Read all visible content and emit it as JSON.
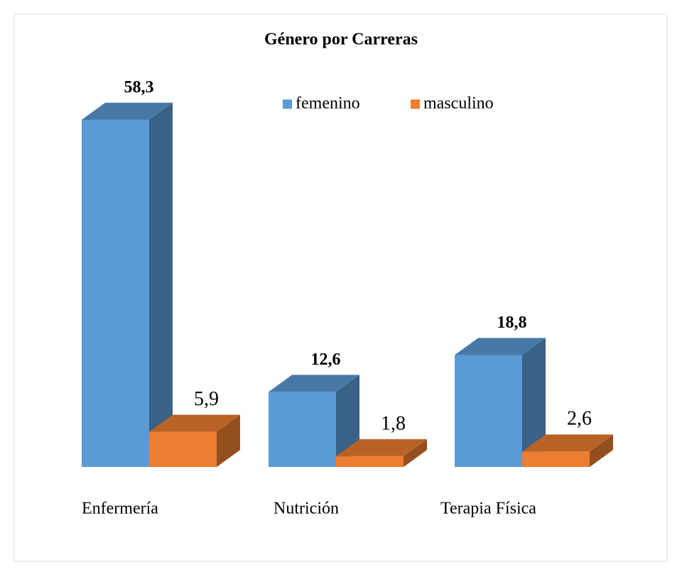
{
  "chart_data": {
    "type": "bar3d",
    "title": "Género por Carreras",
    "categories": [
      "Enfermería",
      "Nutrición",
      "Terapia Física"
    ],
    "series": [
      {
        "name": "femenino",
        "color": "#5b9bd5",
        "values": [
          58.3,
          12.6,
          18.8
        ],
        "value_labels": [
          "58,3",
          "12,6",
          "18,8"
        ]
      },
      {
        "name": "masculino",
        "color": "#ed7d31",
        "values": [
          5.9,
          1.8,
          2.6
        ],
        "value_labels": [
          "5,9",
          "1,8",
          "2,6"
        ]
      }
    ],
    "legend": "top"
  }
}
